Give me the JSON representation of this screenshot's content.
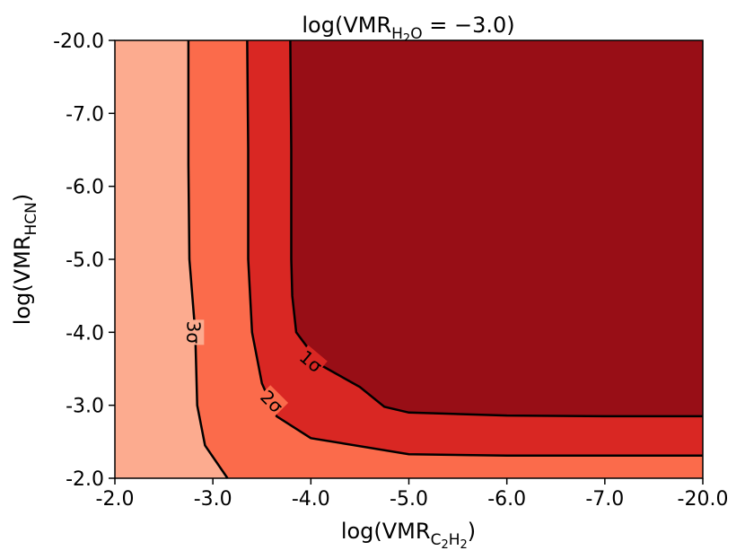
{
  "chart_data": {
    "type": "contour",
    "title": {
      "prefix": "log(VMR",
      "subscript": "H",
      "subscript_num": "2",
      "subscript_tail": "O",
      "suffix": " = −3.0)"
    },
    "xlabel": {
      "prefix": "log(VMR",
      "subscript": "C",
      "sub_2a": "2",
      "sub_h": "H",
      "sub_2b": "2",
      "suffix": ")"
    },
    "ylabel": {
      "prefix": "log(VMR",
      "subscript": "HCN",
      "suffix": ")"
    },
    "x_ticks": [
      "-2.0",
      "-3.0",
      "-4.0",
      "-5.0",
      "-6.0",
      "-7.0",
      "-20.0"
    ],
    "y_ticks": [
      "-2.0",
      "-3.0",
      "-4.0",
      "-5.0",
      "-6.0",
      "-7.0",
      "-20.0"
    ],
    "x_range": [
      0,
      6
    ],
    "y_range": [
      0,
      6
    ],
    "grid": false,
    "levels": [
      {
        "name": "3σ",
        "color": "#fcab8f",
        "boundary": [
          [
            0.75,
            6
          ],
          [
            0.75,
            4.3
          ],
          [
            0.76,
            3.0
          ],
          [
            0.82,
            2.0
          ],
          [
            0.84,
            1.0
          ],
          [
            0.92,
            0.45
          ],
          [
            1.15,
            0
          ]
        ]
      },
      {
        "name": "2σ",
        "color": "#fb6b4b",
        "boundary": [
          [
            1.35,
            6
          ],
          [
            1.36,
            4.5
          ],
          [
            1.36,
            3.0
          ],
          [
            1.4,
            2.0
          ],
          [
            1.5,
            1.3
          ],
          [
            1.65,
            0.85
          ],
          [
            2.0,
            0.55
          ],
          [
            3.0,
            0.33
          ],
          [
            4.0,
            0.31
          ],
          [
            5.0,
            0.31
          ],
          [
            6,
            0.31
          ]
        ]
      },
      {
        "name": "1σ",
        "color": "#d92723",
        "boundary": [
          [
            1.79,
            6
          ],
          [
            1.8,
            4.5
          ],
          [
            1.8,
            3.0
          ],
          [
            1.81,
            2.5
          ],
          [
            1.85,
            2.0
          ],
          [
            2.1,
            1.55
          ],
          [
            2.5,
            1.25
          ],
          [
            2.75,
            0.98
          ],
          [
            3.0,
            0.9
          ],
          [
            4.0,
            0.86
          ],
          [
            5.0,
            0.85
          ],
          [
            6,
            0.85
          ]
        ]
      }
    ],
    "innermost_color": "#980e16",
    "contour_labels": [
      "3σ",
      "2σ",
      "1σ"
    ]
  }
}
